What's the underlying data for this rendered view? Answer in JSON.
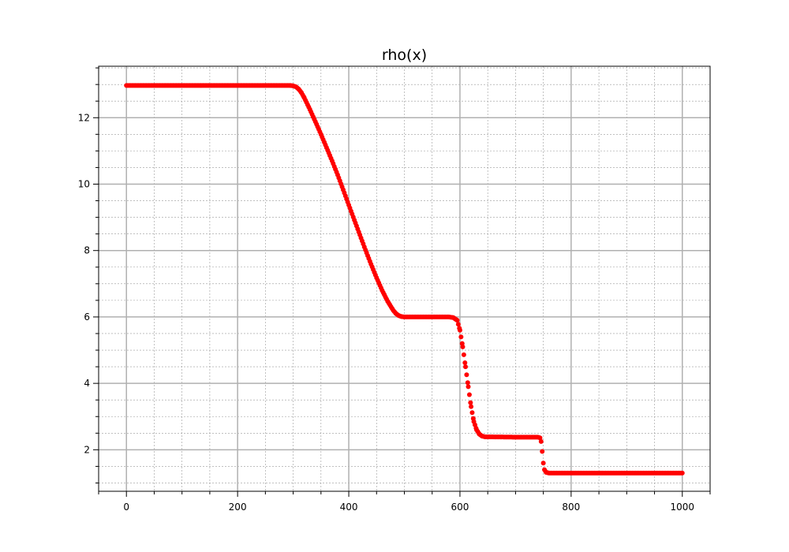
{
  "chart_data": {
    "type": "scatter",
    "title": "rho(x)",
    "xlabel": "",
    "ylabel": "",
    "xlim": [
      -50,
      1050
    ],
    "ylim": [
      0.75,
      13.55
    ],
    "xticks": [
      0,
      200,
      400,
      600,
      800,
      1000
    ],
    "yticks": [
      2,
      4,
      6,
      8,
      10,
      12
    ],
    "xticks_minor_step": 50,
    "yticks_minor_step": 0.5,
    "grid": true,
    "marker_color": "#ff0000",
    "grid_color": "#b0b0b0",
    "series": [
      {
        "points": [
          [
            0,
            12.97
          ],
          [
            100,
            12.97
          ],
          [
            200,
            12.97
          ],
          [
            295,
            12.97
          ],
          [
            300,
            12.96
          ],
          [
            305,
            12.93
          ],
          [
            310,
            12.86
          ],
          [
            315,
            12.75
          ],
          [
            320,
            12.6
          ],
          [
            330,
            12.25
          ],
          [
            340,
            11.88
          ],
          [
            350,
            11.5
          ],
          [
            360,
            11.1
          ],
          [
            370,
            10.7
          ],
          [
            380,
            10.28
          ],
          [
            390,
            9.83
          ],
          [
            400,
            9.37
          ],
          [
            410,
            8.92
          ],
          [
            420,
            8.47
          ],
          [
            430,
            8.02
          ],
          [
            440,
            7.59
          ],
          [
            450,
            7.18
          ],
          [
            460,
            6.8
          ],
          [
            470,
            6.47
          ],
          [
            480,
            6.2
          ],
          [
            485,
            6.1
          ],
          [
            490,
            6.04
          ],
          [
            495,
            6.01
          ],
          [
            500,
            6.0
          ],
          [
            550,
            6.0
          ],
          [
            580,
            6.0
          ],
          [
            588,
            5.98
          ],
          [
            595,
            5.9
          ],
          [
            600,
            5.6
          ],
          [
            605,
            5.1
          ],
          [
            610,
            4.5
          ],
          [
            615,
            3.9
          ],
          [
            620,
            3.3
          ],
          [
            625,
            2.85
          ],
          [
            630,
            2.6
          ],
          [
            635,
            2.47
          ],
          [
            640,
            2.41
          ],
          [
            645,
            2.39
          ],
          [
            700,
            2.38
          ],
          [
            740,
            2.38
          ],
          [
            744,
            2.36
          ],
          [
            746,
            2.25
          ],
          [
            748,
            1.95
          ],
          [
            750,
            1.6
          ],
          [
            752,
            1.4
          ],
          [
            755,
            1.32
          ],
          [
            760,
            1.3
          ],
          [
            800,
            1.3
          ],
          [
            900,
            1.3
          ],
          [
            1000,
            1.3
          ]
        ]
      }
    ]
  }
}
